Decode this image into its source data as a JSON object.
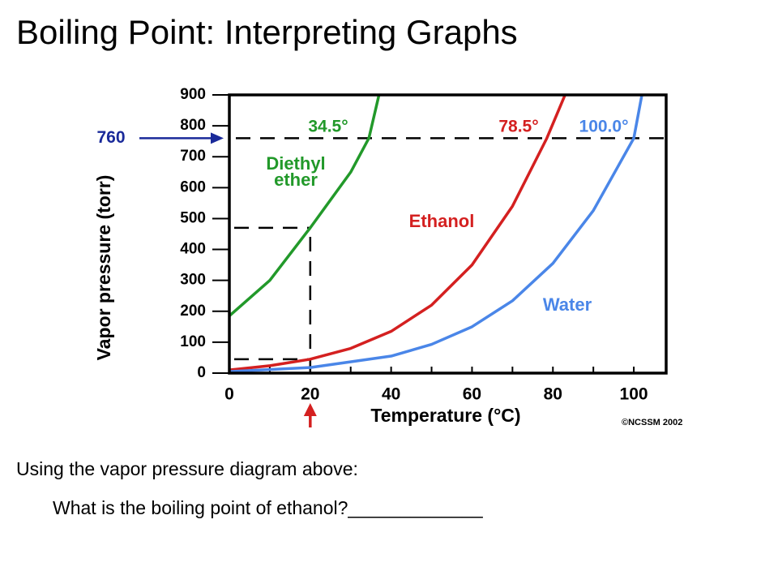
{
  "slide": {
    "title": "Boiling Point: Interpreting Graphs",
    "intro": "Using the vapor pressure diagram above:",
    "question": "What is the boiling point of ethanol?_____________"
  },
  "chart_data": {
    "type": "line",
    "x_label": "Temperature (°C)",
    "y_label": "Vapor pressure (torr)",
    "xlim": [
      0,
      108
    ],
    "ylim": [
      0,
      900
    ],
    "xticks": [
      0,
      20,
      40,
      60,
      80,
      100
    ],
    "xminor_ticks": [
      10,
      30,
      50,
      70,
      90
    ],
    "yticks": [
      0,
      100,
      200,
      300,
      400,
      500,
      600,
      700,
      800,
      900
    ],
    "series": [
      {
        "name": "Diethyl ether",
        "color": "#22992a",
        "x": [
          0,
          10,
          20,
          30,
          34.5,
          37
        ],
        "values": [
          185,
          300,
          470,
          650,
          760,
          900
        ],
        "boiling_label": "34.5°"
      },
      {
        "name": "Ethanol",
        "color": "#d42020",
        "x": [
          0,
          10,
          20,
          30,
          40,
          50,
          60,
          70,
          78.5,
          83
        ],
        "values": [
          10,
          24,
          45,
          80,
          135,
          220,
          350,
          540,
          760,
          900
        ],
        "boiling_label": "78.5°"
      },
      {
        "name": "Water",
        "color": "#4a86e8",
        "x": [
          0,
          20,
          40,
          50,
          60,
          70,
          80,
          90,
          100,
          102
        ],
        "values": [
          5,
          18,
          55,
          93,
          150,
          234,
          355,
          526,
          760,
          900
        ],
        "boiling_label": "100.0°"
      }
    ],
    "marker_y": 760,
    "marker_x": 20,
    "credit": "©NCSSM 2002"
  }
}
